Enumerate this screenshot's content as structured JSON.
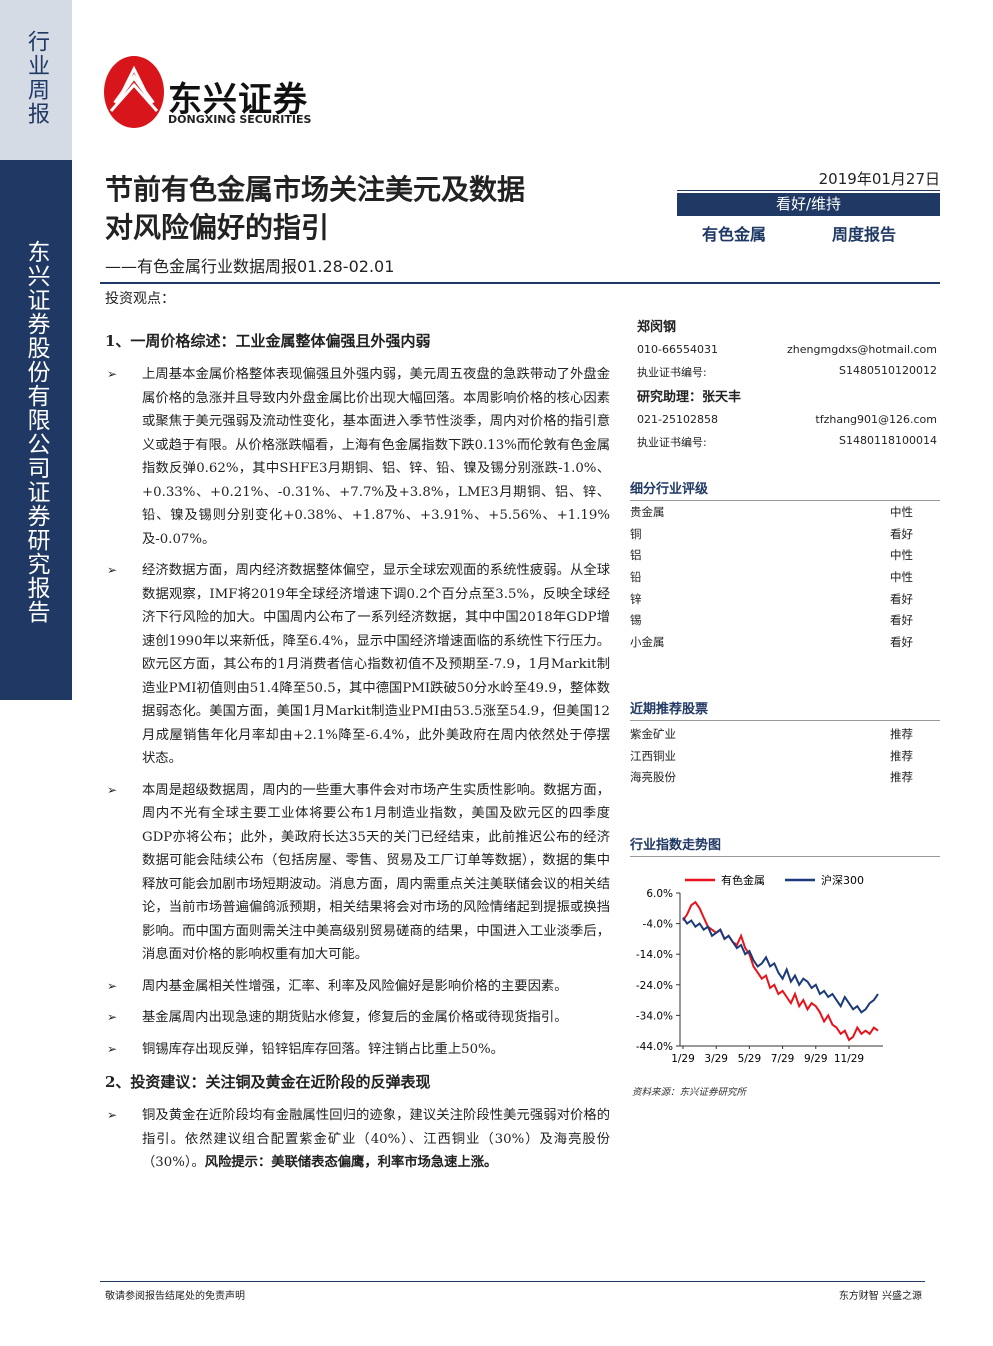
{
  "header": {
    "sidebar_top": "行业周报",
    "sidebar_bottom": "东兴证券股份有限公司证券研究报告",
    "logo_cn": "东兴证券",
    "logo_en": "DONGXING SECURITIES",
    "title_line1": "节前有色金属市场关注美元及数据",
    "title_line2": "对风险偏好的指引",
    "subtitle": "——有色金属行业数据周报01.28-02.01",
    "date": "2019年01月27日",
    "rating": "看好/维持",
    "industry": "有色金属",
    "report_type": "周度报告"
  },
  "body": {
    "intro": "投资观点：",
    "sections": [
      {
        "heading": "1、一周价格综述：工业金属整体偏强且外强内弱",
        "bullets": [
          {
            "text": "上周基本金属价格整体表现偏强且外强内弱，美元周五夜盘的急跌带动了外盘金属价格的急涨并且导致内外盘金属比价出现大幅回落。本周影响价格的核心因素或聚焦于美元强弱及流动性变化，基本面进入季节性淡季，周内对价格的指引意义或趋于有限。从价格涨跌幅看，上海有色金属指数下跌0.13%而伦敦有色金属指数反弹0.62%，其中SHFE3月期铜、铝、锌、铅、镍及锡分别涨跌-1.0%、+0.33%、+0.21%、-0.31%、+7.7%及+3.8%，LME3月期铜、铝、锌、铅、镍及锡则分别变化+0.38%、+1.87%、+3.91%、+5.56%、+1.19%及-0.07%。"
          },
          {
            "text": "经济数据方面，周内经济数据整体偏空，显示全球宏观面的系统性疲弱。从全球数据观察，IMF将2019年全球经济增速下调0.2个百分点至3.5%，反映全球经济下行风险的加大。中国周内公布了一系列经济数据，其中中国2018年GDP增速创1990年以来新低，降至6.4%，显示中国经济增速面临的系统性下行压力。欧元区方面，其公布的1月消费者信心指数初值不及预期至-7.9，1月Markit制造业PMI初值则由51.4降至50.5，其中德国PMI跌破50分水岭至49.9，整体数据弱态化。美国方面，美国1月Markit制造业PMI由53.5涨至54.9，但美国12月成屋销售年化月率却由+2.1%降至-6.4%，此外美政府在周内依然处于停摆状态。"
          },
          {
            "text": "本周是超级数据周，周内的一些重大事件会对市场产生实质性影响。数据方面，周内不光有全球主要工业体将要公布1月制造业指数，美国及欧元区的四季度GDP亦将公布；此外，美政府长达35天的关门已经结束，此前推迟公布的经济数据可能会陆续公布（包括房屋、零售、贸易及工厂订单等数据），数据的集中释放可能会加剧市场短期波动。消息方面，周内需重点关注美联储会议的相关结论，当前市场普遍偏鸽派预期，相关结果将会对市场的风险情绪起到提振或换挡影响。而中国方面则需关注中美高级别贸易磋商的结果，中国进入工业淡季后，消息面对价格的影响权重有加大可能。"
          },
          {
            "text": "周内基金属相关性增强，汇率、利率及风险偏好是影响价格的主要因素。"
          },
          {
            "text": "基金属周内出现急速的期货贴水修复，修复后的金属价格或待现货指引。"
          },
          {
            "text": "铜锡库存出现反弹，铅锌铝库存回落。锌注销占比重上50%。"
          }
        ]
      },
      {
        "heading": "2、投资建议：关注铜及黄金在近阶段的反弹表现",
        "bullets": [
          {
            "text": "铜及黄金在近阶段均有金融属性回归的迹象，建议关注阶段性美元强弱对价格的指引。依然建议组合配置紫金矿业（40%）、江西铜业（30%）及海亮股份（30%）。",
            "bold": "风险提示：美联储表态偏鹰，利率市场急速上涨。"
          }
        ]
      }
    ]
  },
  "sidebar": {
    "analyst": {
      "name": "郑闵钢",
      "phone": "010-66554031",
      "email": "zhengmgdxs@hotmail.com",
      "cert_label": "执业证书编号:",
      "cert": "S1480510120012"
    },
    "assistant": {
      "name": "研究助理：张天丰",
      "phone": "021-25102858",
      "email": "tfzhang901@126.com",
      "cert_label": "执业证书编号:",
      "cert": "S1480118100014"
    },
    "ratings_title": "细分行业评级",
    "ratings": [
      [
        "贵金属",
        "中性"
      ],
      [
        "铜",
        "看好"
      ],
      [
        "铝",
        "中性"
      ],
      [
        "铅",
        "中性"
      ],
      [
        "锌",
        "看好"
      ],
      [
        "锡",
        "看好"
      ],
      [
        "小金属",
        "看好"
      ]
    ],
    "stocks_title": "近期推荐股票",
    "stocks": [
      [
        "紫金矿业",
        "推荐"
      ],
      [
        "江西铜业",
        "推荐"
      ],
      [
        "海亮股份",
        "推荐"
      ]
    ],
    "chart_title": "行业指数走势图",
    "source": "资料来源：东兴证券研究所"
  },
  "chart_data": {
    "type": "line",
    "categories": [
      "1/29",
      null,
      null,
      null,
      null,
      null,
      null,
      null,
      "3/29",
      null,
      null,
      null,
      null,
      null,
      null,
      null,
      "5/29",
      null,
      null,
      null,
      null,
      null,
      null,
      null,
      "7/29",
      null,
      null,
      null,
      null,
      null,
      null,
      null,
      "9/29",
      null,
      null,
      null,
      null,
      null,
      null,
      null,
      "11/29",
      null,
      null,
      null,
      null,
      null,
      null,
      null
    ],
    "series": [
      {
        "name": "有色金属",
        "color": "#e8121b",
        "values": [
          -3,
          -1,
          2,
          3,
          1,
          -2,
          -5,
          -6,
          -7,
          -6,
          -9,
          -8,
          -10,
          -11,
          -8,
          -12,
          -14,
          -18,
          -20,
          -22,
          -21,
          -25,
          -24,
          -27,
          -26,
          -28,
          -30,
          -27,
          -31,
          -29,
          -32,
          -30,
          -31,
          -33,
          -36,
          -34,
          -37,
          -38,
          -40,
          -39,
          -42,
          -41,
          -38,
          -40,
          -39,
          -40,
          -38,
          -39
        ]
      },
      {
        "name": "沪深300",
        "color": "#1a3a7a",
        "values": [
          -2,
          -4,
          -3,
          -5,
          -4,
          -6,
          -5,
          -8,
          -7,
          -6,
          -9,
          -8,
          -10,
          -12,
          -11,
          -14,
          -13,
          -16,
          -18,
          -17,
          -15,
          -18,
          -17,
          -20,
          -22,
          -19,
          -23,
          -21,
          -24,
          -22,
          -23,
          -25,
          -24,
          -27,
          -26,
          -28,
          -27,
          -29,
          -31,
          -28,
          -30,
          -32,
          -31,
          -33,
          -32,
          -30,
          -29,
          -27
        ]
      }
    ],
    "ylim": [
      -44,
      6
    ],
    "yticks": [
      {
        "value": 6,
        "label": "6.0%"
      },
      {
        "value": -4,
        "label": "-4.0%"
      },
      {
        "value": -14,
        "label": "-14.0%"
      },
      {
        "value": -24,
        "label": "-24.0%"
      },
      {
        "value": -34,
        "label": "-34.0%"
      },
      {
        "value": -44,
        "label": "-44.0%"
      }
    ]
  },
  "footer": {
    "left": "敬请参阅报告结尾处的免责声明",
    "right": "东方财智 兴盛之源"
  }
}
